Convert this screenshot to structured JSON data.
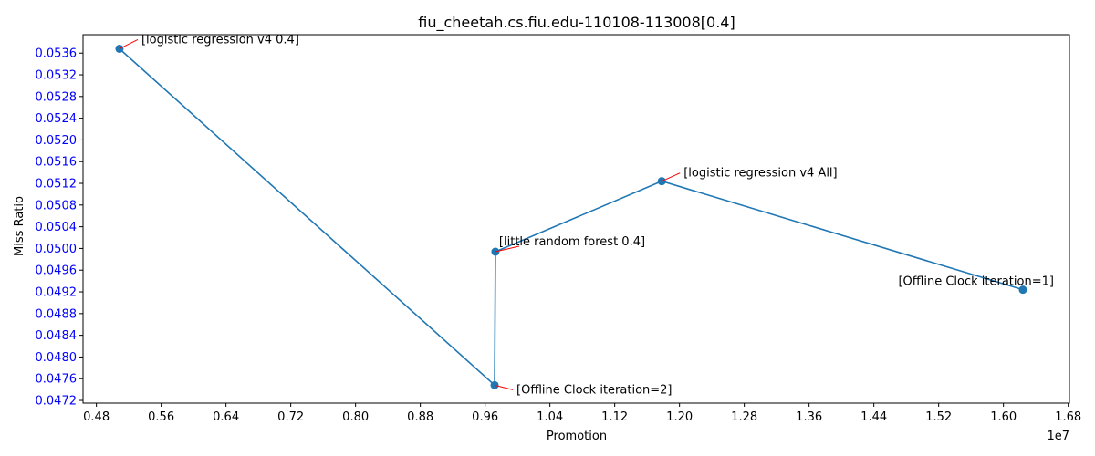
{
  "chart_data": {
    "type": "line",
    "title": "fiu_cheetah.cs.fiu.edu-110108-113008[0.4]",
    "xlabel": "Promotion",
    "ylabel": "Miss Ratio",
    "x_offset_label": "1e7",
    "xlim": [
      0.4635,
      1.6815
    ],
    "ylim": [
      0.04715,
      0.05394
    ],
    "x_ticks": [
      0.48,
      0.56,
      0.64,
      0.72,
      0.8,
      0.88,
      0.96,
      1.04,
      1.12,
      1.2,
      1.28,
      1.36,
      1.44,
      1.52,
      1.6,
      1.68
    ],
    "x_tick_labels": [
      "0.48",
      "0.56",
      "0.64",
      "0.72",
      "0.80",
      "0.88",
      "0.96",
      "1.04",
      "1.12",
      "1.20",
      "1.28",
      "1.36",
      "1.44",
      "1.52",
      "1.60",
      "1.68"
    ],
    "y_ticks": [
      0.0472,
      0.0476,
      0.048,
      0.0484,
      0.0488,
      0.0492,
      0.0496,
      0.05,
      0.0504,
      0.0508,
      0.0512,
      0.0516,
      0.052,
      0.0524,
      0.0528,
      0.0532,
      0.0536
    ],
    "y_tick_labels": [
      "0.0472",
      "0.0476",
      "0.0480",
      "0.0484",
      "0.0488",
      "0.0492",
      "0.0496",
      "0.0500",
      "0.0504",
      "0.0508",
      "0.0512",
      "0.0516",
      "0.0520",
      "0.0524",
      "0.0528",
      "0.0532",
      "0.0536"
    ],
    "grid": false,
    "series": [
      {
        "color": "#1f77b4",
        "points": [
          {
            "x": 0.5085,
            "y": 0.05368,
            "label": "[logistic regression v4 0.4]"
          },
          {
            "x": 0.9717,
            "y": 0.04748,
            "label": "[Offline Clock iteration=2]"
          },
          {
            "x": 0.9727,
            "y": 0.04994,
            "label": "[little random forest 0.4]"
          },
          {
            "x": 1.1781,
            "y": 0.05124,
            "label": "[logistic regression v4 All]"
          },
          {
            "x": 1.624,
            "y": 0.04924,
            "label": "[Offline Clock iteration=1]"
          }
        ]
      }
    ],
    "annotation_color": "#ff0000",
    "ytick_color": "#0000ff"
  }
}
